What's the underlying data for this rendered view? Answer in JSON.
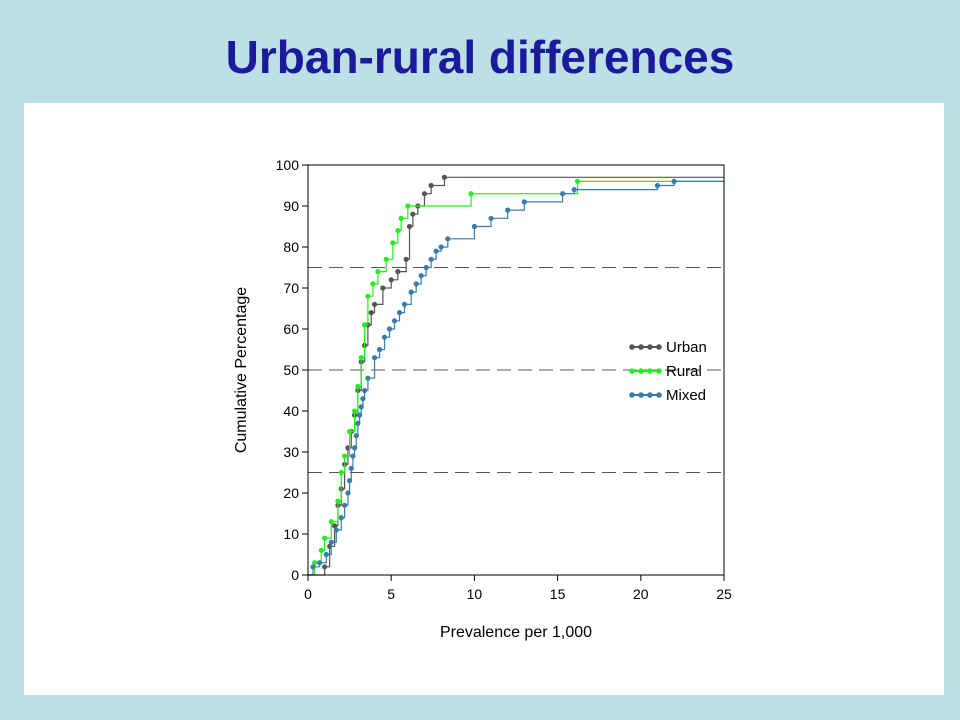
{
  "slide": {
    "title": "Urban-rural differences"
  },
  "chart_data": {
    "type": "line",
    "step": true,
    "xlabel": "Prevalence per 1,000",
    "ylabel": "Cumulative Percentage",
    "xlim": [
      0,
      25
    ],
    "ylim": [
      0,
      100
    ],
    "xticks": [
      0,
      5,
      10,
      15,
      20,
      25
    ],
    "yticks": [
      0,
      10,
      20,
      30,
      40,
      50,
      60,
      70,
      80,
      90,
      100
    ],
    "reference_lines_y": [
      25,
      50,
      75
    ],
    "legend_position": "right-middle",
    "series": [
      {
        "name": "Urban",
        "color": "#555555",
        "x": [
          1.0,
          1.3,
          1.6,
          1.8,
          2.0,
          2.2,
          2.4,
          2.6,
          2.8,
          3.0,
          3.2,
          3.4,
          3.6,
          3.8,
          4.0,
          4.5,
          5.0,
          5.4,
          5.9,
          6.1,
          6.3,
          6.6,
          7.0,
          7.4,
          8.2
        ],
        "y": [
          2,
          7,
          12,
          17,
          21,
          27,
          31,
          35,
          39,
          45,
          52,
          56,
          61,
          64,
          66,
          70,
          72,
          74,
          77,
          85,
          88,
          90,
          93,
          95,
          97
        ]
      },
      {
        "name": "Rural",
        "color": "#22ee22",
        "x": [
          0.4,
          0.8,
          1.0,
          1.4,
          1.8,
          2.0,
          2.2,
          2.5,
          2.8,
          3.0,
          3.2,
          3.4,
          3.6,
          3.9,
          4.2,
          4.7,
          5.1,
          5.4,
          5.6,
          6.0,
          9.8,
          16.2
        ],
        "y": [
          3,
          6,
          9,
          13,
          18,
          25,
          29,
          35,
          40,
          46,
          53,
          61,
          68,
          71,
          74,
          77,
          81,
          84,
          87,
          90,
          93,
          96
        ]
      },
      {
        "name": "Mixed",
        "color": "#3a7ca8",
        "x": [
          0.3,
          0.7,
          1.1,
          1.4,
          1.7,
          2.0,
          2.2,
          2.4,
          2.5,
          2.6,
          2.7,
          2.8,
          2.9,
          3.0,
          3.1,
          3.2,
          3.3,
          3.4,
          3.6,
          4.0,
          4.3,
          4.6,
          4.9,
          5.2,
          5.5,
          5.8,
          6.2,
          6.5,
          6.8,
          7.1,
          7.4,
          7.7,
          8.0,
          8.4,
          10.0,
          11.0,
          12.0,
          13.0,
          15.3,
          16.0,
          21.0,
          22.0
        ],
        "y": [
          2,
          3,
          5,
          8,
          11,
          14,
          17,
          20,
          23,
          26,
          29,
          31,
          34,
          37,
          39,
          41,
          43,
          45,
          48,
          53,
          55,
          58,
          60,
          62,
          64,
          66,
          69,
          71,
          73,
          75,
          77,
          79,
          80,
          82,
          85,
          87,
          89,
          91,
          93,
          94,
          95,
          96
        ]
      }
    ]
  }
}
